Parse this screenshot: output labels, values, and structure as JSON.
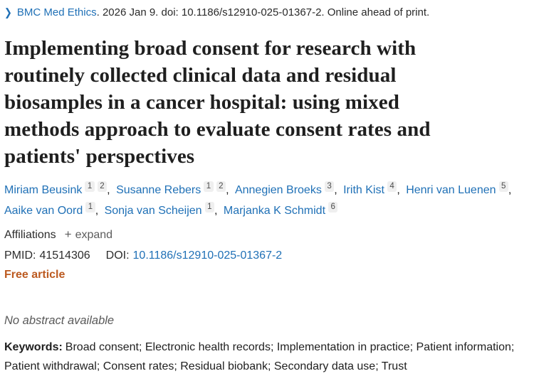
{
  "journal_line": {
    "chevron": "❯",
    "journal_link": "BMC Med Ethics",
    "citation_rest": ". 2026 Jan 9. doi: 10.1186/s12910-025-01367-2. Online ahead of print."
  },
  "title": "Implementing broad consent for research with routinely collected clinical data and residual biosamples in a cancer hospital: using mixed methods approach to evaluate consent rates and patients' perspectives",
  "authors": [
    {
      "name": "Miriam Beusink",
      "sups": [
        "1",
        "2"
      ]
    },
    {
      "name": "Susanne Rebers",
      "sups": [
        "1",
        "2"
      ]
    },
    {
      "name": "Annegien Broeks",
      "sups": [
        "3"
      ]
    },
    {
      "name": "Irith Kist",
      "sups": [
        "4"
      ]
    },
    {
      "name": "Henri van Luenen",
      "sups": [
        "5"
      ]
    },
    {
      "name": "Aaike van Oord",
      "sups": [
        "1"
      ]
    },
    {
      "name": "Sonja van Scheijen",
      "sups": [
        "1"
      ]
    },
    {
      "name": "Marjanka K Schmidt",
      "sups": [
        "6"
      ]
    }
  ],
  "affiliations": {
    "label": "Affiliations",
    "expand_icon": "+",
    "expand_label": "expand"
  },
  "identifiers": {
    "pmid_label": "PMID:",
    "pmid_value": "41514306",
    "doi_label": "DOI:",
    "doi_value": "10.1186/s12910-025-01367-2"
  },
  "free_article_label": "Free article",
  "abstract_notice": "No abstract available",
  "keywords": {
    "label": "Keywords:",
    "value": "Broad consent; Electronic health records; Implementation in practice; Patient information; Patient withdrawal; Consent rates; Residual biobank; Secondary data use; Trust"
  },
  "colors": {
    "link_blue": "#1f70b6",
    "free_article_orange": "#bc5a20",
    "text_dark": "#212121",
    "muted_gray": "#5c5c5c",
    "sup_background": "#efefef"
  }
}
